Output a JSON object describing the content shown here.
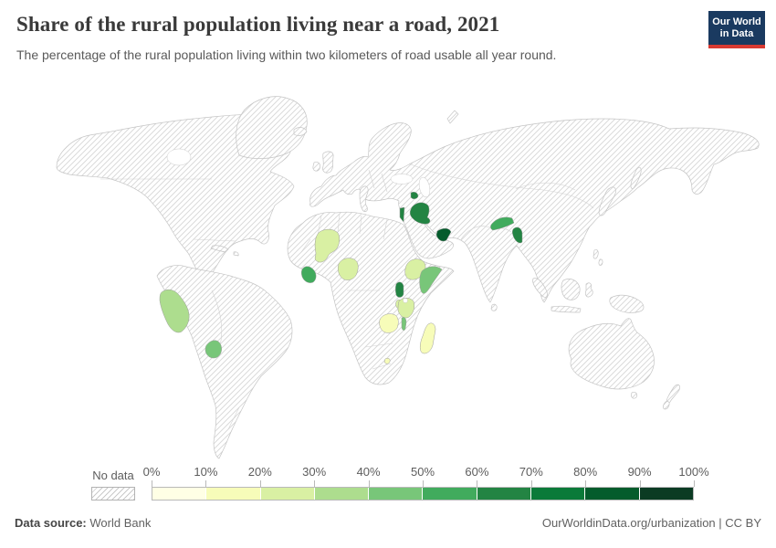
{
  "header": {
    "title": "Share of the rural population living near a road, 2021",
    "subtitle": "The percentage of the rural population living within two kilometers of road usable all year round."
  },
  "logo": {
    "line1": "Our World",
    "line2": "in Data",
    "bg_color": "#1a3a60",
    "underline_color": "#d93a32"
  },
  "legend": {
    "no_data_label": "No data",
    "tick_labels": [
      "0%",
      "10%",
      "20%",
      "30%",
      "40%",
      "50%",
      "60%",
      "70%",
      "80%",
      "90%",
      "100%"
    ],
    "bin_colors": [
      "#ffffe5",
      "#f7fcb9",
      "#d9f0a3",
      "#addd8e",
      "#78c679",
      "#41ab5d",
      "#238443",
      "#0a7a39",
      "#045c2c",
      "#0b3b23"
    ]
  },
  "footer": {
    "source_label": "Data source:",
    "source_value": "World Bank",
    "credit": "OurWorldinData.org/urbanization | CC BY"
  },
  "chart_data": {
    "type": "choropleth_map",
    "title": "Share of the rural population living near a road, 2021",
    "subtitle": "The percentage of the rural population living within two kilometers of road usable all year round.",
    "year": 2021,
    "unit": "%",
    "source": "World Bank",
    "projection": "world",
    "no_data_style": "white with light gray diagonal hatching",
    "legend_bins": [
      {
        "range": "0-10%",
        "color": "#ffffe5"
      },
      {
        "range": "10-20%",
        "color": "#f7fcb9"
      },
      {
        "range": "20-30%",
        "color": "#d9f0a3"
      },
      {
        "range": "30-40%",
        "color": "#addd8e"
      },
      {
        "range": "40-50%",
        "color": "#78c679"
      },
      {
        "range": "50-60%",
        "color": "#41ab5d"
      },
      {
        "range": "60-70%",
        "color": "#238443"
      },
      {
        "range": "70-80%",
        "color": "#0a7a39"
      },
      {
        "range": "80-90%",
        "color": "#045c2c"
      },
      {
        "range": "90-100%",
        "color": "#0b3b23"
      }
    ],
    "entities": [
      {
        "key": "peru",
        "name": "Peru",
        "value_range": "30-40%",
        "color": "#addd8e"
      },
      {
        "key": "paraguay",
        "name": "Paraguay",
        "value_range": "40-50%",
        "color": "#78c679"
      },
      {
        "key": "mali",
        "name": "Mali",
        "value_range": "20-30%",
        "color": "#d9f0a3"
      },
      {
        "key": "sierra-leone-liberia",
        "name": "Sierra Leone / Liberia",
        "value_range": "50-60%",
        "color": "#41ab5d"
      },
      {
        "key": "nigeria",
        "name": "Nigeria",
        "value_range": "20-30%",
        "color": "#d9f0a3"
      },
      {
        "key": "ethiopia",
        "name": "Ethiopia",
        "value_range": "20-30%",
        "color": "#d9f0a3"
      },
      {
        "key": "somalia",
        "name": "Somalia",
        "value_range": "40-50%",
        "color": "#78c679"
      },
      {
        "key": "uganda",
        "name": "Uganda",
        "value_range": "60-70%",
        "color": "#238443"
      },
      {
        "key": "rwanda-burundi",
        "name": "Rwanda / Burundi",
        "value_range": "20-30%",
        "color": "#d9f0a3"
      },
      {
        "key": "tanzania",
        "name": "Tanzania",
        "value_range": "20-30%",
        "color": "#d9f0a3"
      },
      {
        "key": "zambia",
        "name": "Zambia",
        "value_range": "10-20%",
        "color": "#f7fcb9"
      },
      {
        "key": "malawi",
        "name": "Malawi",
        "value_range": "40-50%",
        "color": "#78c679"
      },
      {
        "key": "madagascar",
        "name": "Madagascar",
        "value_range": "10-20%",
        "color": "#f7fcb9"
      },
      {
        "key": "lesotho",
        "name": "Lesotho",
        "value_range": "10-20%",
        "color": "#f7fcb9"
      },
      {
        "key": "iraq",
        "name": "Iraq",
        "value_range": "60-70%",
        "color": "#238443"
      },
      {
        "key": "armenia",
        "name": "Armenia",
        "value_range": "60-70%",
        "color": "#238443"
      },
      {
        "key": "israel-lebanon",
        "name": "Israel / Lebanon",
        "value_range": "60-70%",
        "color": "#238443"
      },
      {
        "key": "uae",
        "name": "United Arab Emirates",
        "value_range": "80-90%",
        "color": "#045c2c"
      },
      {
        "key": "nepal",
        "name": "Nepal",
        "value_range": "50-60%",
        "color": "#41ab5d"
      },
      {
        "key": "bangladesh",
        "name": "Bangladesh",
        "value_range": "60-70%",
        "color": "#238443"
      }
    ]
  }
}
